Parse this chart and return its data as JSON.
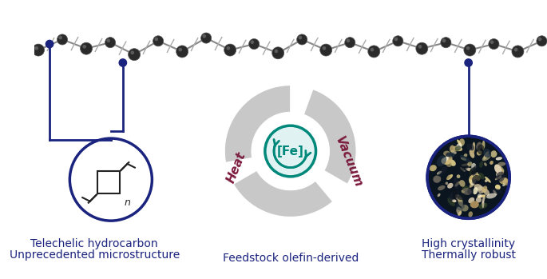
{
  "bg_color": "#ffffff",
  "navy_blue": "#1a237e",
  "teal": "#00897b",
  "teal_light": "#e0f2f1",
  "maroon": "#7b1a3c",
  "gray_arrow": "#c8c8c8",
  "text_left_line1": "Telechelic hydrocarbon",
  "text_left_line2": "Unprecedented microstructure",
  "text_center": "Feedstock olefin-derived",
  "text_right_line1": "High crystallinity",
  "text_right_line2": "Thermally robust",
  "text_heat": "Heat",
  "text_vacuum": "Vacuum",
  "text_fe": "[Fe]",
  "figsize": [
    6.85,
    3.49
  ],
  "dpi": 100
}
